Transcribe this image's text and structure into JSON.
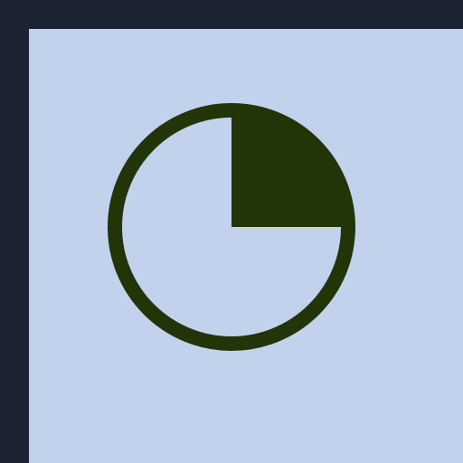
{
  "window": {
    "frame_color": "#1c2333",
    "content_color": "#c2d2ed"
  },
  "icon": {
    "name": "pie-chart-icon",
    "stroke_color": "#213509",
    "fill_color": "#213509",
    "filled_fraction": 0.25
  }
}
